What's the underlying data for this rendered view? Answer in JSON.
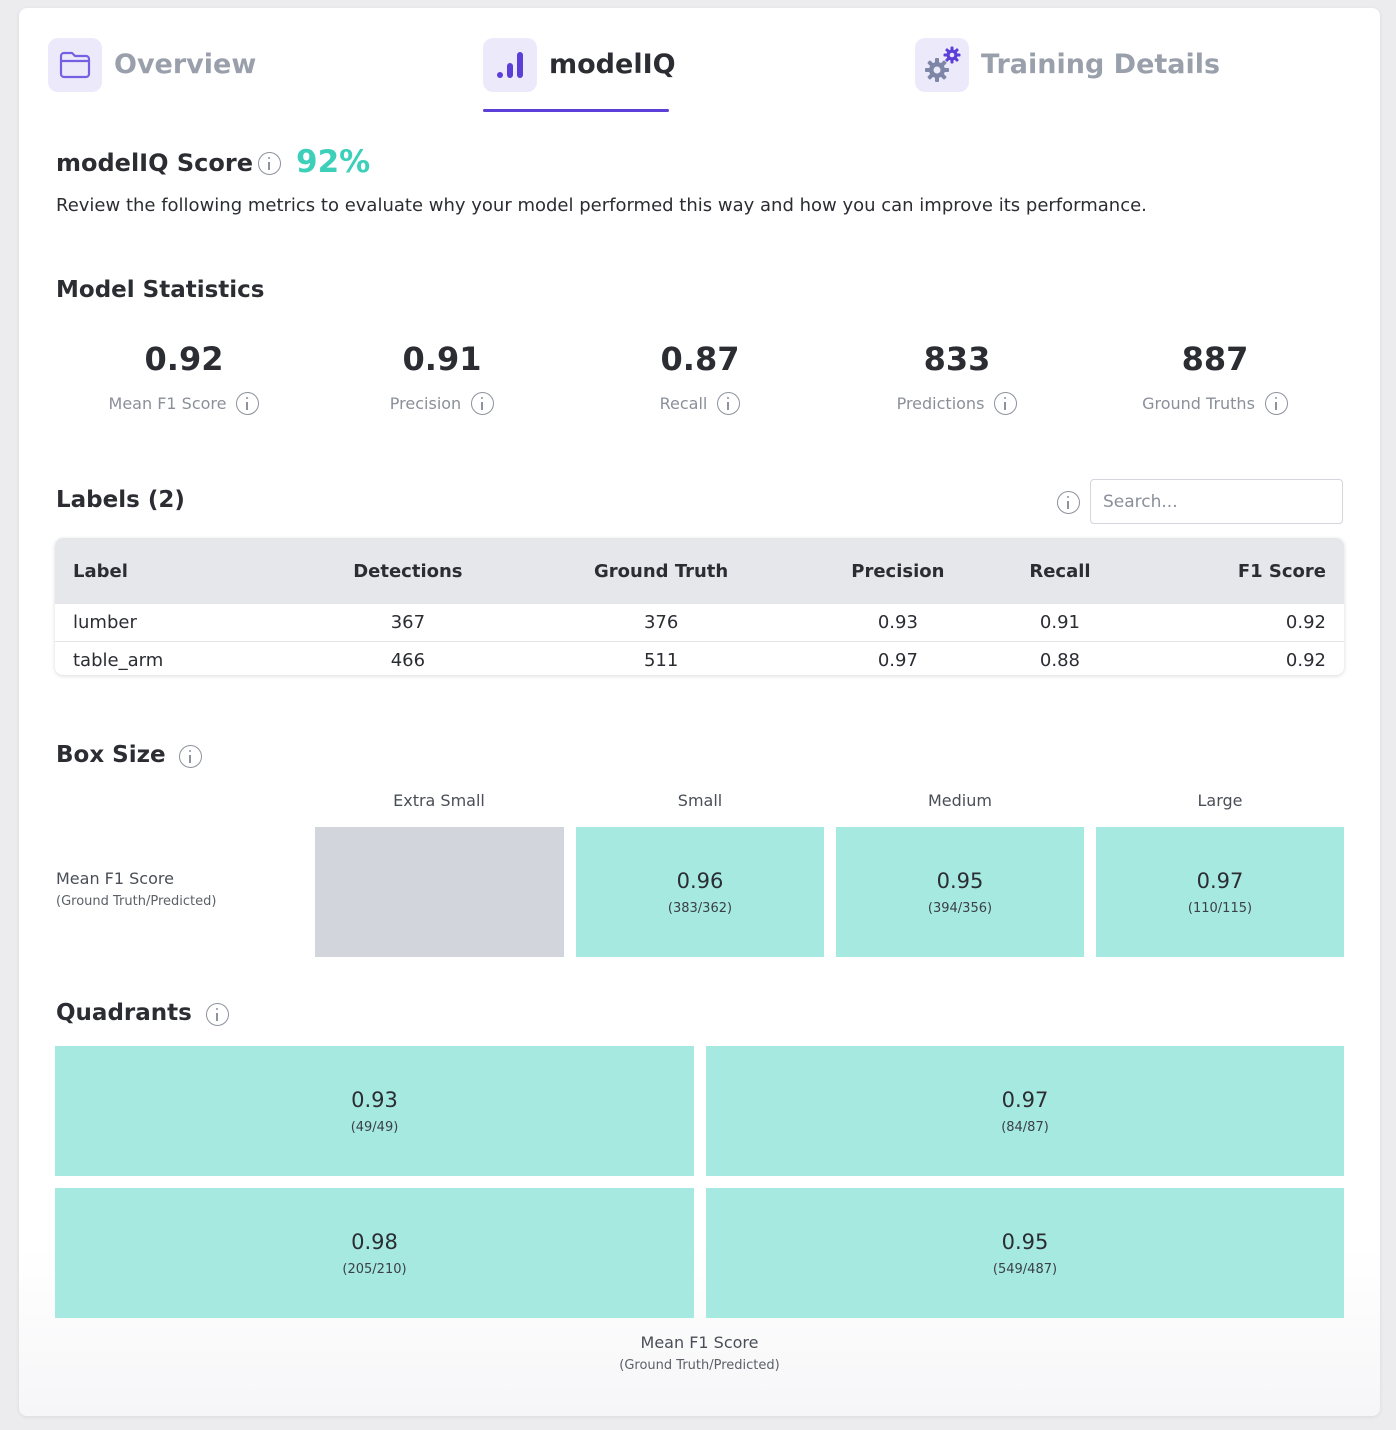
{
  "tabs": [
    {
      "label": "Overview",
      "icon": "folder-icon",
      "active": false
    },
    {
      "label": "modelIQ",
      "icon": "bar-chart-icon",
      "active": true
    },
    {
      "label": "Training Details",
      "icon": "gears-icon",
      "active": false
    }
  ],
  "score": {
    "title": "modelIQ Score",
    "value": "92%",
    "description": "Review the following metrics to evaluate why your model performed this way and how you can improve its performance."
  },
  "model_statistics": {
    "title": "Model Statistics",
    "stats": [
      {
        "value": "0.92",
        "label": "Mean F1 Score"
      },
      {
        "value": "0.91",
        "label": "Precision"
      },
      {
        "value": "0.87",
        "label": "Recall"
      },
      {
        "value": "833",
        "label": "Predictions"
      },
      {
        "value": "887",
        "label": "Ground Truths"
      }
    ]
  },
  "labels": {
    "title": "Labels (2)",
    "search_placeholder": "Search...",
    "columns": [
      "Label",
      "Detections",
      "Ground Truth",
      "Precision",
      "Recall",
      "F1 Score"
    ],
    "rows": [
      [
        "lumber",
        "367",
        "376",
        "0.93",
        "0.91",
        "0.92"
      ],
      [
        "table_arm",
        "466",
        "511",
        "0.97",
        "0.88",
        "0.92"
      ]
    ]
  },
  "box_size": {
    "title": "Box Size",
    "row_label": "Mean F1 Score",
    "row_sublabel": "(Ground Truth/Predicted)",
    "columns": [
      "Extra Small",
      "Small",
      "Medium",
      "Large"
    ],
    "cells": [
      {
        "value": "",
        "ratio": ""
      },
      {
        "value": "0.96",
        "ratio": "(383/362)"
      },
      {
        "value": "0.95",
        "ratio": "(394/356)"
      },
      {
        "value": "0.97",
        "ratio": "(110/115)"
      }
    ]
  },
  "quadrants": {
    "title": "Quadrants",
    "cells": [
      {
        "value": "0.93",
        "ratio": "(49/49)"
      },
      {
        "value": "0.97",
        "ratio": "(84/87)"
      },
      {
        "value": "0.98",
        "ratio": "(205/210)"
      },
      {
        "value": "0.95",
        "ratio": "(549/487)"
      }
    ],
    "caption": "Mean F1 Score",
    "subcaption": "(Ground Truth/Predicted)"
  },
  "colors": {
    "accent": "#5b3fd6",
    "score": "#3ccfb9",
    "cell_fill": "#a5e9e0",
    "cell_empty": "#d2d6dc"
  }
}
